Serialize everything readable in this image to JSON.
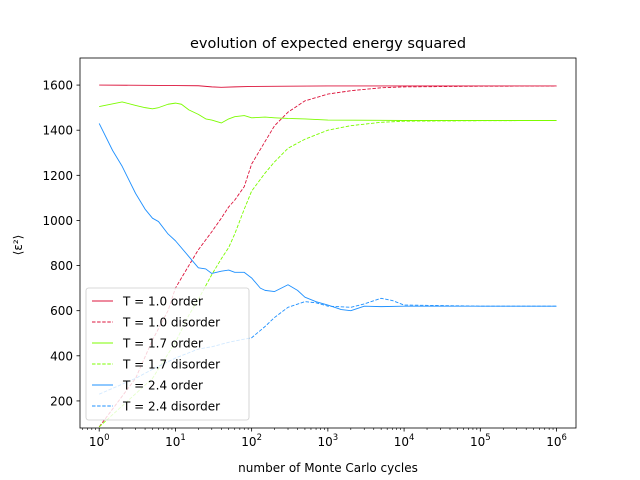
{
  "chart_data": {
    "type": "line",
    "title": "evolution of expected energy squared",
    "xlabel": "number of Monte Carlo cycles",
    "ylabel": "⟨ε²⟩",
    "xscale": "log",
    "xlim": [
      0.56,
      1800000.0
    ],
    "ylim": [
      80,
      1720
    ],
    "xticks": [
      {
        "value": 1,
        "base": "10",
        "exp": "0"
      },
      {
        "value": 10,
        "base": "10",
        "exp": "1"
      },
      {
        "value": 100,
        "base": "10",
        "exp": "2"
      },
      {
        "value": 1000,
        "base": "10",
        "exp": "3"
      },
      {
        "value": 10000,
        "base": "10",
        "exp": "4"
      },
      {
        "value": 100000,
        "base": "10",
        "exp": "5"
      },
      {
        "value": 1000000,
        "base": "10",
        "exp": "6"
      }
    ],
    "yticks": [
      200,
      400,
      600,
      800,
      1000,
      1200,
      1400,
      1600
    ],
    "grid": false,
    "legend_position": "lower-left",
    "series": [
      {
        "name": "T = 1.0 order",
        "color": "#dc143c",
        "style": "solid",
        "x": [
          1,
          10,
          20,
          30,
          40,
          60,
          100,
          300,
          1000,
          10000,
          100000,
          1000000
        ],
        "y": [
          1600,
          1598,
          1597,
          1592,
          1590,
          1592,
          1594,
          1595,
          1596,
          1596,
          1596,
          1596
        ]
      },
      {
        "name": "T = 1.0 disorder",
        "color": "#dc143c",
        "style": "dashed",
        "x": [
          1,
          3,
          5,
          8,
          10,
          15,
          20,
          30,
          40,
          50,
          60,
          80,
          100,
          150,
          200,
          300,
          500,
          1000,
          2000,
          5000,
          10000,
          100000,
          1000000
        ],
        "y": [
          85,
          300,
          470,
          600,
          700,
          800,
          870,
          950,
          1010,
          1060,
          1090,
          1150,
          1250,
          1350,
          1420,
          1480,
          1530,
          1560,
          1575,
          1588,
          1592,
          1595,
          1596
        ]
      },
      {
        "name": "T = 1.7 order",
        "color": "#7cfc00",
        "style": "solid",
        "x": [
          1,
          2,
          3,
          4,
          5,
          6,
          8,
          10,
          12,
          15,
          20,
          25,
          30,
          40,
          50,
          60,
          80,
          100,
          150,
          200,
          300,
          500,
          1000,
          10000,
          100000,
          1000000
        ],
        "y": [
          1505,
          1525,
          1510,
          1500,
          1495,
          1500,
          1515,
          1520,
          1515,
          1490,
          1470,
          1450,
          1445,
          1432,
          1450,
          1460,
          1465,
          1455,
          1458,
          1455,
          1452,
          1450,
          1445,
          1443,
          1443,
          1443
        ]
      },
      {
        "name": "T = 1.7 disorder",
        "color": "#7cfc00",
        "style": "dashed",
        "x": [
          1,
          5,
          10,
          15,
          20,
          30,
          40,
          50,
          60,
          80,
          100,
          150,
          200,
          300,
          500,
          1000,
          2000,
          5000,
          10000,
          100000,
          1000000
        ],
        "y": [
          85,
          300,
          460,
          580,
          650,
          760,
          830,
          880,
          940,
          1050,
          1130,
          1210,
          1260,
          1320,
          1360,
          1400,
          1420,
          1435,
          1440,
          1442,
          1443
        ]
      },
      {
        "name": "T = 2.4 order",
        "color": "#1e90ff",
        "style": "solid",
        "x": [
          1,
          1.5,
          2,
          3,
          4,
          5,
          6,
          8,
          10,
          15,
          20,
          25,
          30,
          40,
          50,
          60,
          80,
          100,
          130,
          150,
          200,
          300,
          400,
          500,
          700,
          1000,
          1500,
          2000,
          3000,
          5000,
          10000,
          100000,
          1000000
        ],
        "y": [
          1430,
          1310,
          1240,
          1120,
          1050,
          1010,
          995,
          940,
          910,
          840,
          790,
          785,
          765,
          775,
          780,
          770,
          770,
          745,
          700,
          690,
          685,
          715,
          690,
          660,
          640,
          625,
          605,
          600,
          620,
          618,
          620,
          620,
          620
        ]
      },
      {
        "name": "T = 2.4 disorder",
        "color": "#1e90ff",
        "style": "dashed",
        "x": [
          1,
          3,
          5,
          10,
          20,
          30,
          50,
          70,
          100,
          150,
          200,
          300,
          500,
          700,
          1000,
          2000,
          3000,
          5000,
          7000,
          10000,
          100000,
          1000000
        ],
        "y": [
          230,
          300,
          340,
          390,
          430,
          440,
          460,
          470,
          480,
          530,
          570,
          615,
          640,
          635,
          620,
          615,
          630,
          655,
          645,
          625,
          620,
          620
        ]
      }
    ]
  }
}
